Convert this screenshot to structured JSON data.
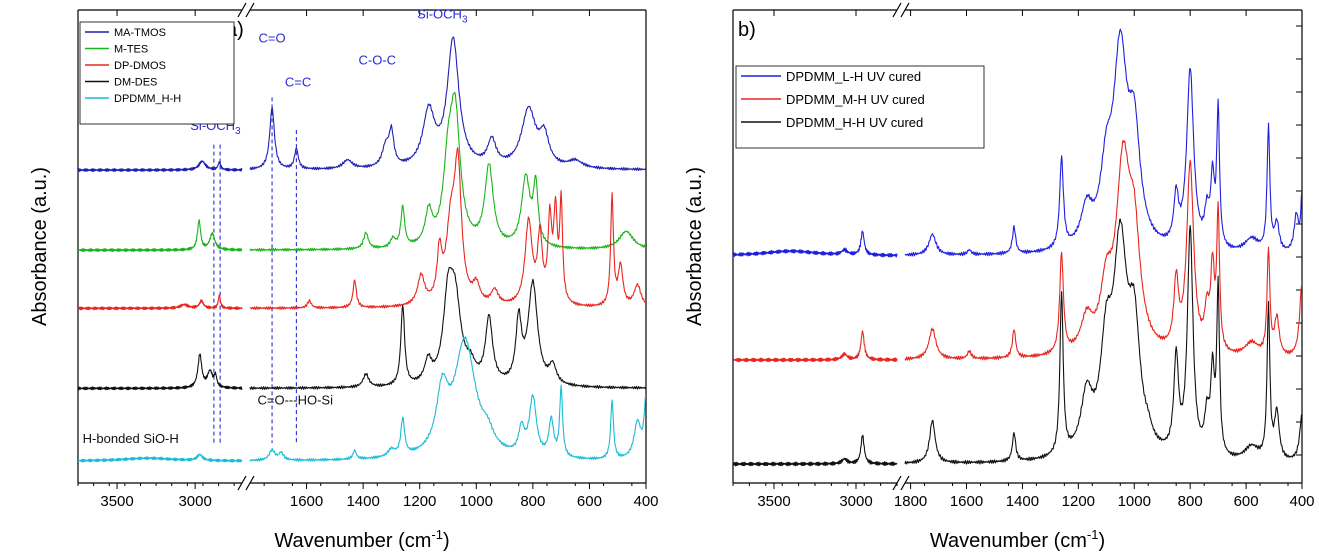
{
  "chart_data": [
    {
      "type": "line",
      "panel_label": "a)",
      "xlabel": "Wavenumber (cm",
      "xlabel_sup": "-1",
      "xlabel_tail": ")",
      "ylabel": "Absorbance (a.u.)",
      "x_reversed": true,
      "x_break": [
        1800,
        2700
      ],
      "x_segments": [
        [
          3750,
          2700
        ],
        [
          1800,
          400
        ]
      ],
      "xticks": [
        3500,
        3000,
        1600,
        1400,
        1200,
        1000,
        800,
        600,
        400
      ],
      "legend_position": "top-left",
      "legend": [
        {
          "name": "MA-TMOS",
          "color": "#1f1fb4"
        },
        {
          "name": "M-TES",
          "color": "#19b419"
        },
        {
          "name": "DP-DMOS",
          "color": "#e8261f"
        },
        {
          "name": "DM-DES",
          "color": "#111111"
        },
        {
          "name": "DPDMM_H-H",
          "color": "#19bcd6"
        }
      ],
      "annotations": [
        {
          "main": "Si-OCH",
          "sub": "3",
          "color": "#2b2bd6",
          "at": 2930
        },
        {
          "main": "C=O",
          "sub": "",
          "color": "#2b2bd6",
          "at": 1722
        },
        {
          "main": "C=C",
          "sub": "",
          "color": "#2b2bd6",
          "at": 1636
        },
        {
          "main": "C-O-C",
          "sub": "",
          "color": "#2b2bd6",
          "at": 1350
        },
        {
          "main": "Si-OCH",
          "sub": "3",
          "color": "#2b2bd6",
          "at": 1130
        },
        {
          "main": "C=O---HO-Si",
          "sub": "",
          "color": "#111111",
          "at": 1640
        },
        {
          "main": "H-bonded SiO-H",
          "sub": "",
          "color": "#111111",
          "at": 3530
        }
      ],
      "guides": [
        2880,
        2840,
        1722,
        1636
      ],
      "series": [
        {
          "name": "MA-TMOS",
          "offset": 4.0,
          "peaks": [
            [
              2955,
              0.12,
              25
            ],
            [
              2845,
              0.1,
              10
            ],
            [
              1722,
              0.85,
              10
            ],
            [
              1636,
              0.28,
              8
            ],
            [
              1455,
              0.12,
              20
            ],
            [
              1320,
              0.28,
              15
            ],
            [
              1300,
              0.45,
              10
            ],
            [
              1168,
              0.75,
              25
            ],
            [
              1082,
              1.75,
              25
            ],
            [
              945,
              0.35,
              18
            ],
            [
              815,
              0.8,
              30
            ],
            [
              760,
              0.4,
              20
            ],
            [
              650,
              0.1,
              30
            ]
          ]
        },
        {
          "name": "M-TES",
          "offset": 2.9,
          "peaks": [
            [
              2975,
              0.4,
              12
            ],
            [
              2890,
              0.22,
              20
            ],
            [
              1390,
              0.22,
              10
            ],
            [
              1295,
              0.12,
              10
            ],
            [
              1260,
              0.55,
              8
            ],
            [
              1168,
              0.45,
              15
            ],
            [
              1100,
              0.9,
              20
            ],
            [
              1075,
              1.75,
              22
            ],
            [
              955,
              1.1,
              18
            ],
            [
              825,
              0.95,
              18
            ],
            [
              790,
              0.8,
              10
            ],
            [
              470,
              0.25,
              30
            ]
          ]
        },
        {
          "name": "DP-DMOS",
          "offset": 2.1,
          "peaks": [
            [
              3070,
              0.05,
              30
            ],
            [
              2960,
              0.1,
              15
            ],
            [
              2845,
              0.18,
              8
            ],
            [
              1590,
              0.1,
              8
            ],
            [
              1430,
              0.38,
              7
            ],
            [
              1195,
              0.4,
              15
            ],
            [
              1130,
              0.65,
              10
            ],
            [
              1090,
              1.0,
              20
            ],
            [
              1065,
              1.75,
              15
            ],
            [
              1000,
              0.25,
              15
            ],
            [
              935,
              0.2,
              15
            ],
            [
              815,
              1.15,
              15
            ],
            [
              775,
              0.9,
              10
            ],
            [
              740,
              1.1,
              8
            ],
            [
              720,
              1.2,
              8
            ],
            [
              700,
              1.35,
              6
            ],
            [
              520,
              1.5,
              6
            ],
            [
              490,
              0.55,
              10
            ],
            [
              430,
              0.3,
              15
            ]
          ]
        },
        {
          "name": "DM-DES",
          "offset": 1.0,
          "peaks": [
            [
              2970,
              0.45,
              15
            ],
            [
              2905,
              0.22,
              20
            ],
            [
              2870,
              0.15,
              10
            ],
            [
              1390,
              0.18,
              12
            ],
            [
              1260,
              1.1,
              8
            ],
            [
              1170,
              0.3,
              15
            ],
            [
              1100,
              1.0,
              20
            ],
            [
              1075,
              1.1,
              25
            ],
            [
              1020,
              0.2,
              20
            ],
            [
              955,
              0.9,
              15
            ],
            [
              850,
              0.85,
              12
            ],
            [
              800,
              1.4,
              20
            ],
            [
              730,
              0.25,
              15
            ]
          ]
        },
        {
          "name": "DPDMM_H-H",
          "offset": 0.0,
          "peaks": [
            [
              3300,
              0.04,
              200
            ],
            [
              2970,
              0.08,
              20
            ],
            [
              1722,
              0.14,
              12
            ],
            [
              1690,
              0.1,
              10
            ],
            [
              1430,
              0.12,
              7
            ],
            [
              1300,
              0.1,
              15
            ],
            [
              1260,
              0.5,
              8
            ],
            [
              1120,
              0.8,
              25
            ],
            [
              1040,
              1.6,
              45
            ],
            [
              960,
              0.2,
              25
            ],
            [
              840,
              0.35,
              12
            ],
            [
              800,
              0.8,
              15
            ],
            [
              735,
              0.5,
              10
            ],
            [
              700,
              0.95,
              6
            ],
            [
              520,
              0.8,
              6
            ],
            [
              430,
              0.5,
              15
            ],
            [
              400,
              0.8,
              8
            ]
          ]
        }
      ]
    },
    {
      "type": "line",
      "panel_label": "b)",
      "xlabel": "Wavenumber (cm",
      "xlabel_sup": "-1",
      "xlabel_tail": ")",
      "ylabel": "Absorbance (a.u.)",
      "x_reversed": true,
      "x_break": [
        1820,
        2750
      ],
      "x_segments": [
        [
          3750,
          2750
        ],
        [
          1820,
          400
        ]
      ],
      "xticks": [
        3500,
        3000,
        1800,
        1600,
        1400,
        1200,
        1000,
        800,
        600,
        400
      ],
      "legend_position": "top-left",
      "legend": [
        {
          "name": "DPDMM_L-H UV cured",
          "color": "#1f1fe0"
        },
        {
          "name": "DPDMM_M-H UV cured",
          "color": "#e8261f"
        },
        {
          "name": "DPDMM_H-H UV cured",
          "color": "#111111"
        }
      ],
      "series": [
        {
          "name": "DPDMM_L-H UV cured",
          "offset": 2.2,
          "peaks": [
            [
              3400,
              0.05,
              200
            ],
            [
              3070,
              0.05,
              20
            ],
            [
              2960,
              0.25,
              12
            ],
            [
              1722,
              0.22,
              15
            ],
            [
              1590,
              0.05,
              8
            ],
            [
              1430,
              0.28,
              7
            ],
            [
              1260,
              0.95,
              8
            ],
            [
              1170,
              0.4,
              25
            ],
            [
              1100,
              0.7,
              25
            ],
            [
              1050,
              2.0,
              30
            ],
            [
              1000,
              1.1,
              25
            ],
            [
              850,
              0.5,
              10
            ],
            [
              800,
              1.9,
              15
            ],
            [
              740,
              0.35,
              10
            ],
            [
              720,
              0.7,
              8
            ],
            [
              700,
              1.45,
              6
            ],
            [
              580,
              0.15,
              30
            ],
            [
              520,
              1.3,
              6
            ],
            [
              490,
              0.3,
              10
            ],
            [
              420,
              0.4,
              10
            ],
            [
              400,
              0.6,
              5
            ]
          ]
        },
        {
          "name": "DPDMM_M-H UV cured",
          "offset": 1.1,
          "peaks": [
            [
              3070,
              0.06,
              20
            ],
            [
              2960,
              0.3,
              12
            ],
            [
              1722,
              0.32,
              15
            ],
            [
              1590,
              0.08,
              8
            ],
            [
              1430,
              0.3,
              7
            ],
            [
              1260,
              1.05,
              8
            ],
            [
              1170,
              0.35,
              25
            ],
            [
              1100,
              0.6,
              25
            ],
            [
              1040,
              1.9,
              30
            ],
            [
              1000,
              1.05,
              25
            ],
            [
              850,
              0.7,
              10
            ],
            [
              800,
              2.0,
              15
            ],
            [
              740,
              0.4,
              10
            ],
            [
              720,
              0.85,
              8
            ],
            [
              700,
              1.45,
              6
            ],
            [
              580,
              0.15,
              30
            ],
            [
              520,
              1.1,
              6
            ],
            [
              490,
              0.4,
              10
            ],
            [
              400,
              0.8,
              10
            ]
          ]
        },
        {
          "name": "DPDMM_H-H UV cured",
          "offset": 0.0,
          "peaks": [
            [
              3070,
              0.05,
              20
            ],
            [
              2960,
              0.3,
              12
            ],
            [
              1722,
              0.45,
              12
            ],
            [
              1430,
              0.3,
              7
            ],
            [
              1260,
              1.7,
              7
            ],
            [
              1170,
              0.6,
              25
            ],
            [
              1100,
              1.0,
              25
            ],
            [
              1050,
              2.1,
              30
            ],
            [
              1000,
              1.2,
              25
            ],
            [
              950,
              0.1,
              15
            ],
            [
              850,
              1.0,
              10
            ],
            [
              800,
              2.4,
              12
            ],
            [
              740,
              0.4,
              10
            ],
            [
              720,
              0.85,
              8
            ],
            [
              700,
              1.75,
              6
            ],
            [
              580,
              0.15,
              30
            ],
            [
              520,
              1.6,
              6
            ],
            [
              490,
              0.5,
              10
            ],
            [
              400,
              0.5,
              10
            ]
          ]
        }
      ]
    }
  ]
}
